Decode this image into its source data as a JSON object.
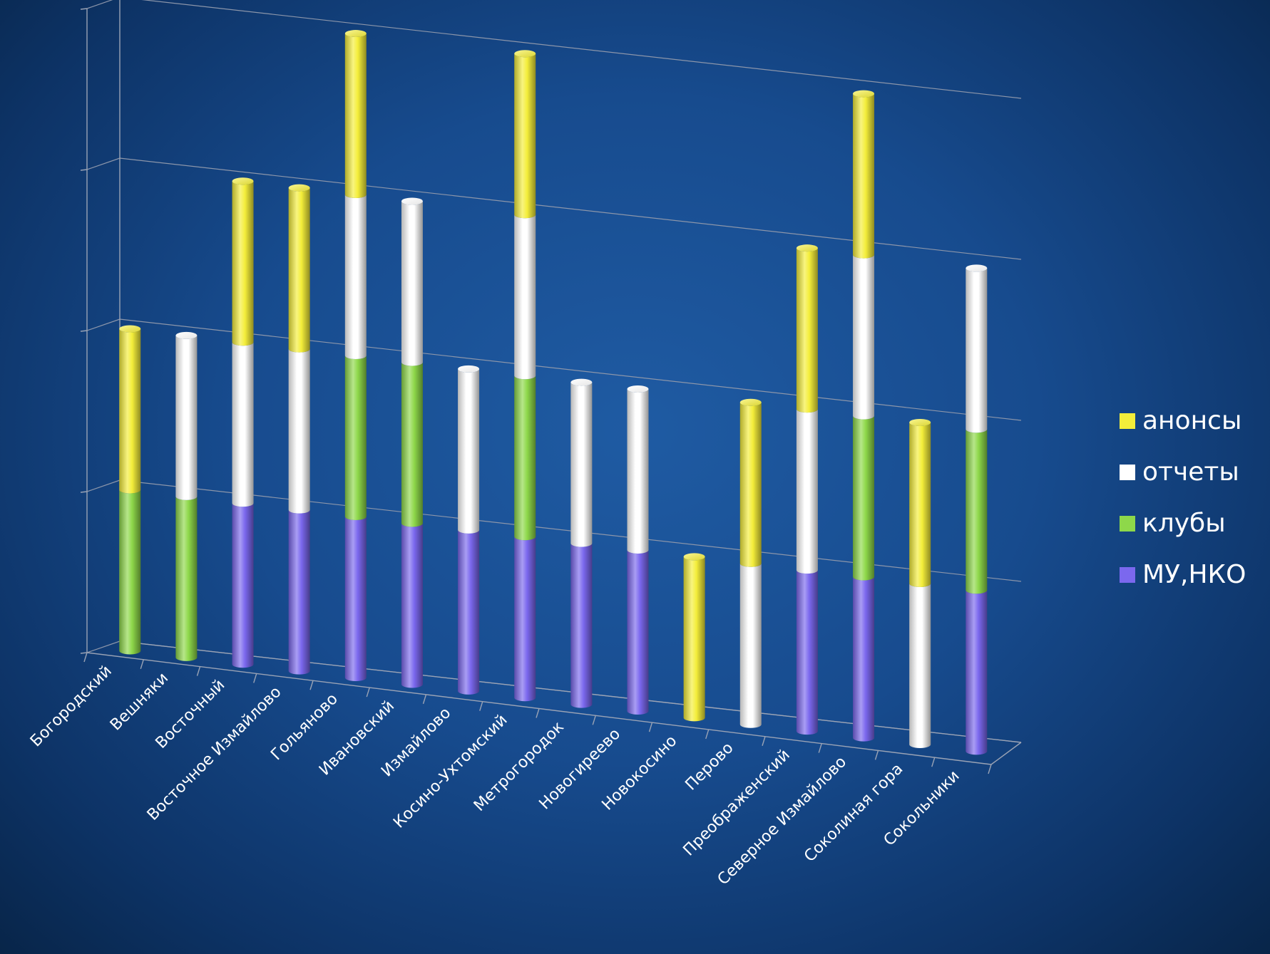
{
  "chart_data": {
    "type": "bar",
    "stacked": true,
    "style": "3d-cylinder",
    "categories": [
      "Богородский",
      "Вешняки",
      "Восточный",
      "Восточное Измайлово",
      "Гольяново",
      "Ивановский",
      "Измайлово",
      "Косино-Ухтомский",
      "Метрогородок",
      "Новогиреево",
      "Новокосино",
      "Перово",
      "Преображенский",
      "Северное Измайлово",
      "Соколиная гора",
      "Сокольники"
    ],
    "series": [
      {
        "name": "МУ,НКО",
        "color": "#7b68ee",
        "values": [
          0,
          0,
          1,
          1,
          1,
          1,
          1,
          1,
          1,
          1,
          0,
          0,
          1,
          1,
          0,
          1
        ]
      },
      {
        "name": "клубы",
        "color": "#8ed84a",
        "values": [
          1,
          1,
          0,
          0,
          1,
          1,
          0,
          1,
          0,
          0,
          0,
          0,
          0,
          1,
          0,
          1
        ]
      },
      {
        "name": "отчеты",
        "color": "#ffffff",
        "values": [
          0,
          1,
          1,
          1,
          1,
          1,
          1,
          1,
          1,
          1,
          0,
          1,
          1,
          1,
          1,
          1
        ]
      },
      {
        "name": "анонсы",
        "color": "#f4ee3a",
        "values": [
          1,
          0,
          1,
          1,
          1,
          0,
          0,
          1,
          0,
          0,
          1,
          1,
          1,
          1,
          1,
          0
        ]
      }
    ],
    "ylim": [
      0,
      4
    ],
    "grid": true,
    "legend_position": "right"
  }
}
